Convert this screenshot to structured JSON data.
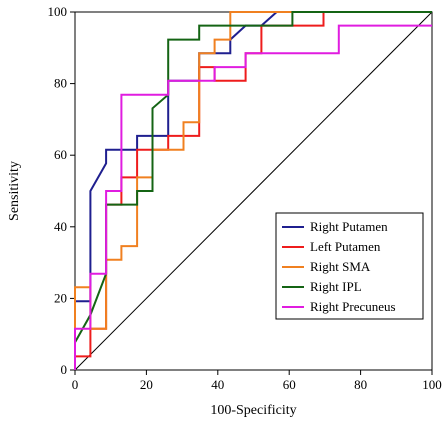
{
  "chart_data": {
    "type": "line",
    "xlabel": "100-Specificity",
    "ylabel": "Sensitivity",
    "xlim": [
      0,
      100
    ],
    "ylim": [
      0,
      100
    ],
    "x_ticks": [
      "0",
      "20",
      "40",
      "60",
      "80",
      "100"
    ],
    "y_ticks": [
      "0",
      "20",
      "40",
      "60",
      "80",
      "100"
    ],
    "legend_position": "bottom-right",
    "grid": false,
    "reference_line": {
      "x": [
        0,
        100
      ],
      "y": [
        0,
        100
      ],
      "color": "#000000"
    },
    "series": [
      {
        "name": "Right Putamen",
        "color": "#1f1f8f",
        "x": [
          0,
          0,
          4.3,
          4.3,
          4.3,
          8.7,
          8.7,
          17.4,
          17.4,
          26.1,
          26.1,
          30.4,
          34.8,
          34.8,
          43.5,
          43.5,
          47.8,
          52.2,
          56.5,
          56.5,
          100
        ],
        "y": [
          0,
          19.2,
          19.2,
          50,
          50,
          57.7,
          61.5,
          61.5,
          65.4,
          65.4,
          80.8,
          80.8,
          80.8,
          88.5,
          88.5,
          92.3,
          96.2,
          96.2,
          100,
          100,
          100
        ]
      },
      {
        "name": "Left Putamen",
        "color": "#ee1c1c",
        "x": [
          0,
          0,
          4.3,
          4.3,
          8.7,
          8.7,
          13,
          13,
          17.4,
          17.4,
          26.1,
          26.1,
          34.8,
          34.8,
          39.1,
          39.1,
          47.8,
          47.8,
          52.2,
          52.2,
          69.6,
          69.6,
          100
        ],
        "y": [
          0,
          3.8,
          3.8,
          11.5,
          11.5,
          46.2,
          46.2,
          53.8,
          53.8,
          61.5,
          61.5,
          65.4,
          65.4,
          84.6,
          84.6,
          80.8,
          80.8,
          88.5,
          88.5,
          96.2,
          96.2,
          100,
          100
        ]
      },
      {
        "name": "Right SMA",
        "color": "#f08020",
        "x": [
          0,
          0,
          4.3,
          4.3,
          8.7,
          8.7,
          13,
          13,
          17.4,
          17.4,
          21.7,
          21.7,
          30.4,
          30.4,
          34.8,
          34.8,
          39.1,
          39.1,
          43.5,
          43.5,
          100
        ],
        "y": [
          0,
          23.1,
          23.1,
          11.5,
          11.5,
          30.8,
          30.8,
          34.6,
          34.6,
          53.8,
          53.8,
          61.5,
          61.5,
          69.2,
          69.2,
          88.5,
          88.5,
          92.3,
          92.3,
          100,
          100
        ]
      },
      {
        "name": "Right IPL",
        "color": "#146414",
        "x": [
          0,
          0,
          4.3,
          8.7,
          8.7,
          17.4,
          17.4,
          21.7,
          21.7,
          26.1,
          26.1,
          30.4,
          34.8,
          34.8,
          60.9,
          60.9,
          100
        ],
        "y": [
          0,
          7.7,
          15.4,
          26.9,
          46.2,
          46.2,
          50,
          50,
          73.1,
          76.9,
          92.3,
          92.3,
          92.3,
          96.2,
          96.2,
          100,
          100
        ]
      },
      {
        "name": "Right Precuneus",
        "color": "#e01ce0",
        "x": [
          0,
          0,
          4.3,
          4.3,
          8.7,
          8.7,
          13,
          13,
          26.1,
          26.1,
          39.1,
          39.1,
          47.8,
          47.8,
          73.9,
          73.9,
          100
        ],
        "y": [
          0,
          11.5,
          11.5,
          26.9,
          26.9,
          50,
          50,
          76.9,
          76.9,
          80.8,
          80.8,
          84.6,
          84.6,
          88.5,
          88.5,
          96.2,
          96.2
        ]
      }
    ]
  }
}
